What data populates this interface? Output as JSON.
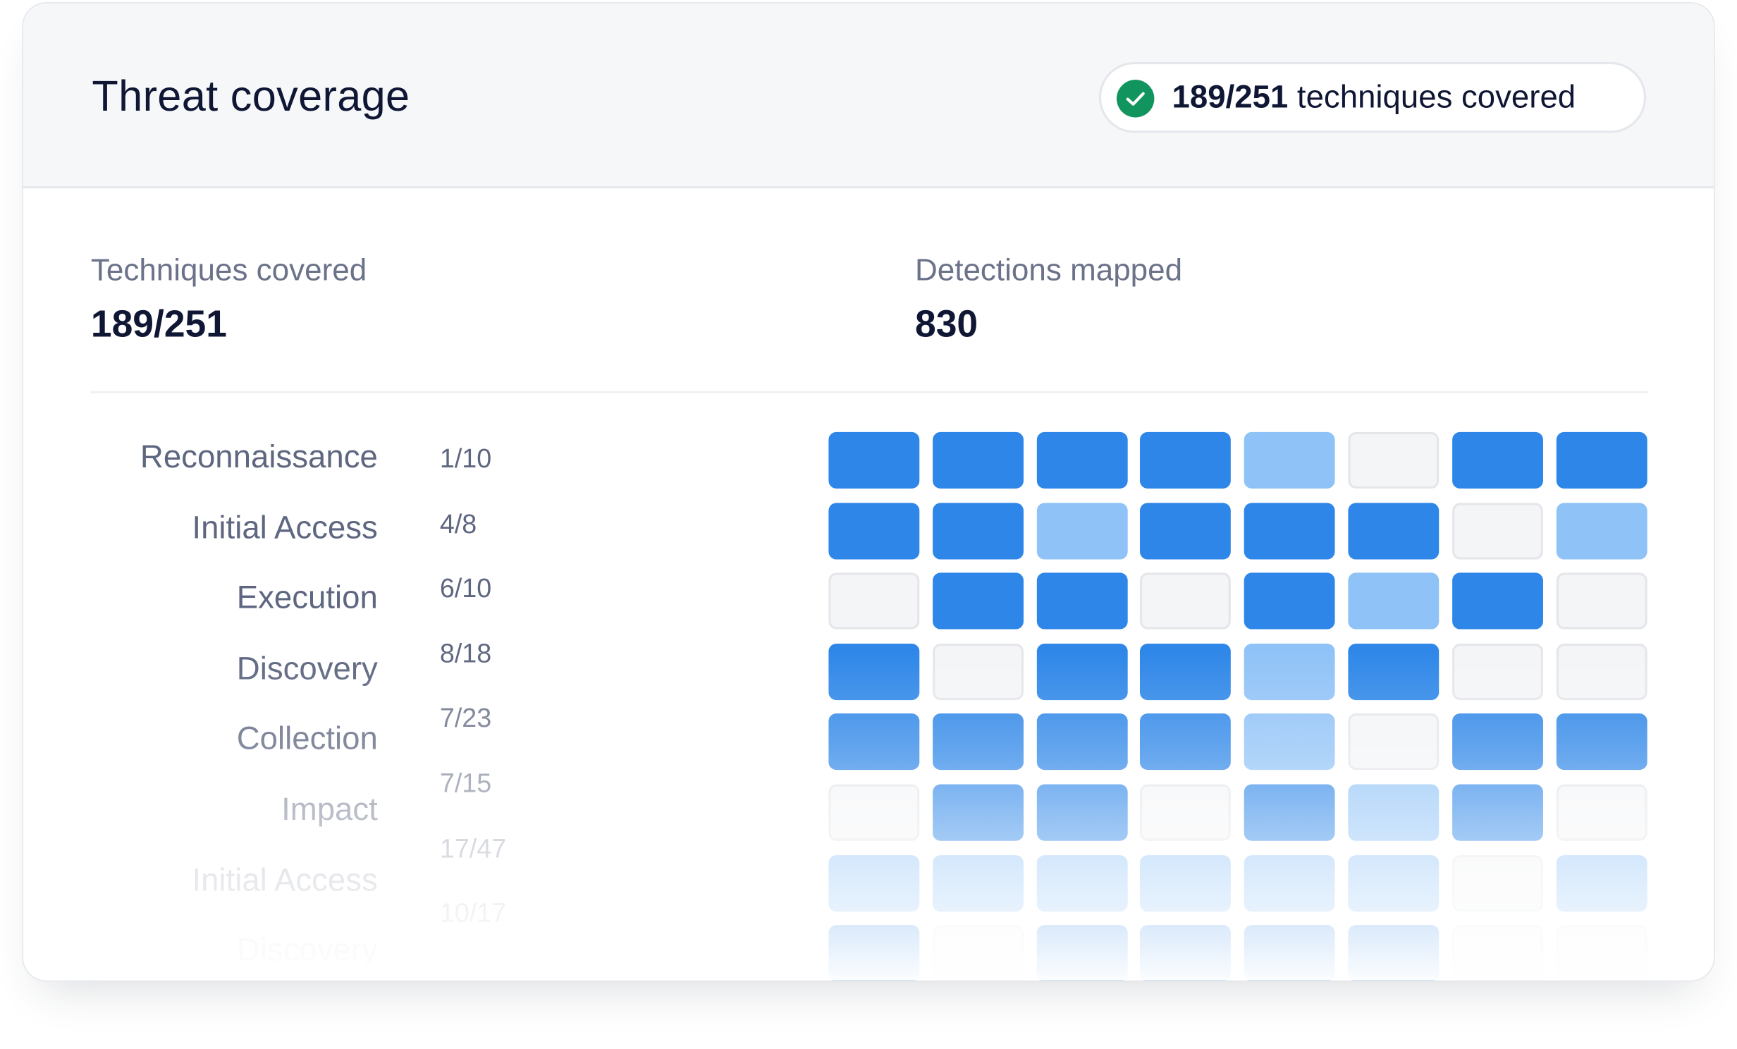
{
  "header": {
    "title": "Threat coverage",
    "badge": {
      "icon": "check-circle-icon",
      "count": "189/251",
      "suffix": " techniques covered"
    }
  },
  "stats": {
    "techniques_label": "Techniques covered",
    "techniques_value": "189/251",
    "detections_label": "Detections mapped",
    "detections_value": "830"
  },
  "colors": {
    "full": "#2d86e8",
    "partial": "#8fc2f7",
    "none": "#f4f5f7",
    "success": "#12945f"
  },
  "tactics": [
    {
      "name": "Reconnaissance",
      "count": "1/10",
      "cells": [
        "full",
        "full",
        "full",
        "full",
        "mid",
        "none",
        "full",
        "full"
      ]
    },
    {
      "name": "Initial Access",
      "count": "4/8",
      "cells": [
        "full",
        "full",
        "mid",
        "full",
        "full",
        "full",
        "none",
        "mid"
      ]
    },
    {
      "name": "Execution",
      "count": "6/10",
      "cells": [
        "none",
        "full",
        "full",
        "none",
        "full",
        "mid",
        "full",
        "none"
      ]
    },
    {
      "name": "Discovery",
      "count": "8/18",
      "cells": [
        "full",
        "none",
        "full",
        "full",
        "mid",
        "full",
        "none",
        "none"
      ]
    },
    {
      "name": "Collection",
      "count": "7/23",
      "cells": [
        "full",
        "full",
        "full",
        "full",
        "mid",
        "none",
        "full",
        "full"
      ]
    },
    {
      "name": "Impact",
      "count": "7/15",
      "cells": [
        "none",
        "full",
        "full",
        "none",
        "full",
        "mid",
        "full",
        "none"
      ]
    },
    {
      "name": "Initial Access",
      "count": "17/47",
      "cells": [
        "mid",
        "mid",
        "mid",
        "mid",
        "mid",
        "mid",
        "none",
        "mid"
      ]
    },
    {
      "name": "Discovery",
      "count": "10/17",
      "cells": [
        "full",
        "none",
        "full",
        "full",
        "full",
        "full",
        "none",
        "none"
      ]
    }
  ]
}
